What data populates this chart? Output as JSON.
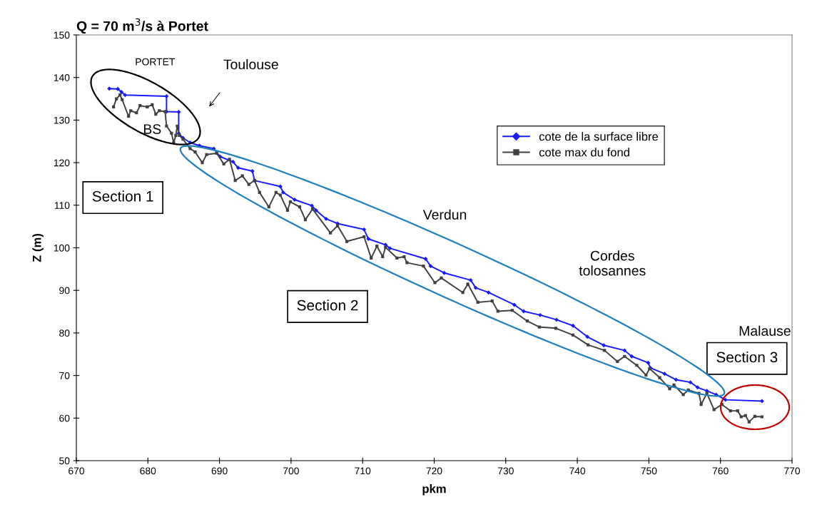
{
  "chart_data": {
    "type": "line",
    "title": "Q = 70 m$^{3}$/s à Portet",
    "xlabel": "pkm",
    "ylabel": "Z (m)",
    "xlim": [
      670,
      770
    ],
    "xticks": [
      670,
      680,
      690,
      700,
      710,
      720,
      730,
      740,
      750,
      760,
      770
    ],
    "ylim": [
      50,
      150
    ],
    "yticks": [
      50,
      60,
      70,
      80,
      90,
      100,
      110,
      120,
      130,
      140,
      150
    ],
    "grid": false,
    "legend": "top right",
    "line_style": "solid",
    "series": [
      {
        "name": "cote de la surface libre",
        "color": "#1a1aff",
        "marker": "diamond",
        "x": [
          674.6,
          675.8,
          676.3,
          676.8,
          682.6,
          682.6,
          684.3,
          684.3,
          684.9,
          685.9,
          687.2,
          689.2,
          690.1,
          691.9,
          692.6,
          694.6,
          694.9,
          698.5,
          698.9,
          700.5,
          702.9,
          703.5,
          704.9,
          706.5,
          710.2,
          710.8,
          713.2,
          713.8,
          718.8,
          719.5,
          721.4,
          725.1,
          725.8,
          727.6,
          731.2,
          732.5,
          734.8,
          737.1,
          739.4,
          741.4,
          743.7,
          746.6,
          747.6,
          749.9,
          750.2,
          752.2,
          753.8,
          755.8,
          756.8,
          758.1,
          759.4,
          760.7,
          765.8
        ],
        "values": [
          137.4,
          137.3,
          136.6,
          135.9,
          135.6,
          132.0,
          131.9,
          126.9,
          125.8,
          124.7,
          124.0,
          123.3,
          121.4,
          120.2,
          118.8,
          118.0,
          115.8,
          114.4,
          113.0,
          111.3,
          109.9,
          108.8,
          106.8,
          105.7,
          104.3,
          102.1,
          100.7,
          99.9,
          97.4,
          95.7,
          94.1,
          92.4,
          90.6,
          89.5,
          86.6,
          85.1,
          84.2,
          83.1,
          81.7,
          79.1,
          77.1,
          75.9,
          74.5,
          73.0,
          71.8,
          70.4,
          69.0,
          68.4,
          67.2,
          66.4,
          65.5,
          64.3,
          64.0
        ]
      },
      {
        "name": "cote max du fond",
        "color": "#404040",
        "marker": "square",
        "x": [
          675.2,
          675.6,
          676.1,
          676.4,
          677.3,
          677.6,
          678.4,
          678.9,
          679.9,
          680.6,
          681.1,
          681.6,
          682.4,
          682.6,
          683.3,
          683.6,
          683.9,
          684.1,
          684.4,
          684.9,
          685.9,
          686.6,
          687.6,
          688.2,
          689.6,
          690.6,
          691.4,
          692.2,
          693.2,
          694.1,
          694.9,
          695.6,
          696.9,
          697.9,
          698.5,
          699.5,
          699.9,
          701.2,
          702.0,
          703.0,
          705.5,
          706.5,
          707.8,
          710.2,
          711.2,
          712.0,
          712.8,
          713.2,
          714.8,
          715.8,
          716.2,
          718.5,
          720.1,
          721.0,
          724.0,
          724.7,
          726.1,
          728.1,
          728.9,
          730.9,
          733.0,
          734.7,
          737.0,
          739.4,
          741.5,
          743.8,
          745.6,
          746.6,
          748.3,
          749.6,
          750.1,
          751.5,
          752.9,
          753.5,
          754.8,
          755.5,
          757.0,
          757.3,
          758.1,
          759.1,
          760.2,
          761.4,
          762.4,
          762.9,
          763.5,
          764.0,
          764.8,
          765.8
        ],
        "values": [
          133.1,
          135.0,
          135.9,
          134.8,
          130.9,
          132.2,
          131.7,
          133.4,
          133.1,
          133.6,
          131.4,
          132.2,
          132.0,
          128.6,
          126.9,
          124.7,
          126.4,
          128.6,
          126.4,
          125.5,
          123.3,
          122.5,
          120.0,
          121.9,
          122.2,
          119.7,
          120.8,
          115.8,
          116.9,
          114.9,
          115.8,
          113.0,
          109.6,
          113.0,
          112.4,
          108.8,
          110.8,
          109.6,
          106.6,
          109.1,
          103.5,
          105.2,
          101.5,
          102.6,
          97.6,
          100.4,
          97.9,
          100.1,
          97.6,
          97.9,
          96.5,
          95.7,
          91.8,
          92.9,
          89.5,
          91.5,
          87.2,
          87.5,
          85.1,
          85.3,
          82.8,
          81.4,
          81.1,
          79.5,
          77.2,
          75.9,
          73.3,
          74.5,
          72.4,
          70.1,
          71.6,
          69.5,
          66.9,
          67.8,
          65.5,
          66.6,
          65.8,
          63.2,
          65.8,
          62.0,
          63.2,
          61.7,
          61.7,
          60.3,
          60.6,
          59.1,
          60.4,
          60.3
        ]
      }
    ],
    "annotations": [
      "PORTET",
      "Toulouse",
      "BS",
      "Section 1",
      "Verdun",
      "Cordes\ntolosannes",
      "Section 2",
      "Malause",
      "Section 3"
    ]
  }
}
